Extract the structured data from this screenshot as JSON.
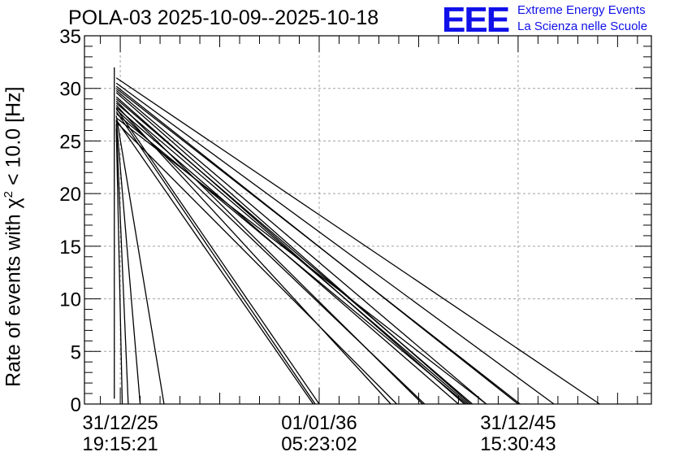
{
  "chart_data": {
    "type": "line",
    "title": "POLA-03 2025-10-09--2025-10-18",
    "ylabel_prefix": "Rate of events with ",
    "ylabel_chi": "χ",
    "ylabel_sup": "2",
    "ylabel_suffix": " < 10.0 [Hz]",
    "ylim": [
      0,
      35
    ],
    "yticks": [
      0,
      5,
      10,
      15,
      20,
      25,
      30,
      35
    ],
    "xlim": [
      -0.18,
      2.67
    ],
    "xticks": [
      {
        "pos": 0,
        "line1": "31/12/25",
        "line2": "19:15:21"
      },
      {
        "pos": 1,
        "line1": "01/01/36",
        "line2": "05:23:02"
      },
      {
        "pos": 2,
        "line1": "31/12/45",
        "line2": "15:30:43"
      }
    ],
    "grid": true,
    "segments": [
      [
        [
          -0.03,
          0.5
        ],
        [
          -0.03,
          32.0
        ]
      ],
      [
        [
          -0.02,
          31.0
        ],
        [
          2.41,
          0
        ]
      ],
      [
        [
          -0.02,
          30.5
        ],
        [
          2.18,
          0
        ]
      ],
      [
        [
          -0.02,
          30.0
        ],
        [
          2.01,
          0
        ]
      ],
      [
        [
          -0.02,
          29.6
        ],
        [
          1.76,
          0
        ]
      ],
      [
        [
          -0.02,
          29.2
        ],
        [
          1.73,
          0
        ]
      ],
      [
        [
          -0.02,
          28.8
        ],
        [
          1.52,
          0
        ]
      ],
      [
        [
          -0.02,
          28.4
        ],
        [
          1.36,
          0
        ]
      ],
      [
        [
          -0.02,
          28.1
        ],
        [
          1.0,
          0
        ]
      ],
      [
        [
          -0.02,
          27.8
        ],
        [
          0.98,
          0
        ]
      ],
      [
        [
          -0.02,
          27.4
        ],
        [
          0.22,
          0
        ]
      ],
      [
        [
          -0.02,
          27.0
        ],
        [
          0.1,
          0
        ]
      ],
      [
        [
          -0.02,
          26.6
        ],
        [
          0.04,
          0
        ]
      ],
      [
        [
          -0.02,
          26.2
        ],
        [
          0.01,
          0
        ]
      ],
      [
        [
          -0.02,
          29.0
        ],
        [
          1.77,
          0
        ]
      ],
      [
        [
          -0.02,
          28.6
        ],
        [
          1.75,
          0
        ]
      ],
      [
        [
          -0.02,
          28.2
        ],
        [
          1.7,
          0
        ]
      ],
      [
        [
          -0.02,
          27.6
        ],
        [
          1.74,
          0
        ]
      ],
      [
        [
          -0.02,
          27.2
        ],
        [
          1.84,
          0
        ]
      ],
      [
        [
          -0.02,
          26.8
        ],
        [
          1.39,
          0
        ]
      ],
      [
        [
          -0.02,
          30.2
        ],
        [
          2.0,
          0
        ]
      ],
      [
        [
          -0.02,
          29.8
        ],
        [
          1.84,
          0
        ]
      ],
      [
        [
          -0.02,
          28.0
        ],
        [
          1.53,
          0
        ]
      ],
      [
        [
          -0.02,
          27.0
        ],
        [
          0.97,
          0
        ]
      ]
    ]
  },
  "logo": {
    "mark": "EEE",
    "line1": "Extreme Energy Events",
    "line2": "La Scienza nelle Scuole"
  }
}
